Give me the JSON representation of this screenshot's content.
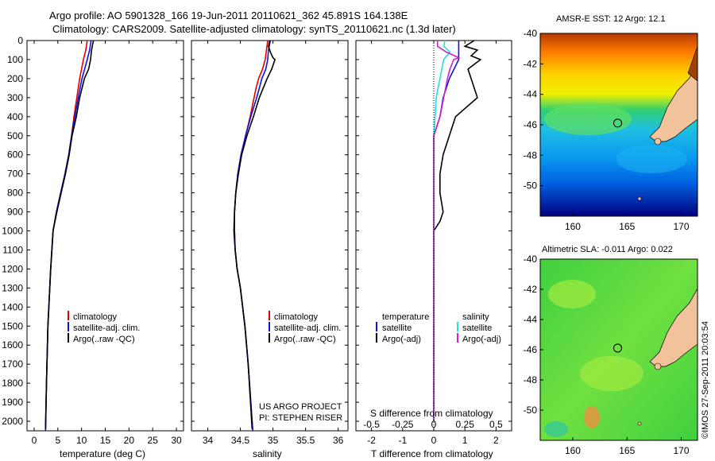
{
  "header": {
    "line1": "Argo profile: AO 5901328_166 19-Jun-2011 20110621_362 45.891S 164.138E",
    "line2": "Climatology: CARS2009. Satellite-adjusted climatology: synTS_20110621.nc (1.3d later)"
  },
  "colors": {
    "climatology": "#e00000",
    "satellite": "#1010e0",
    "argo": "#000000",
    "salinity_satellite": "#20e0e0",
    "salinity_argo": "#d020d0",
    "land": "#f2c29a"
  },
  "depth_ticks": [
    0,
    100,
    200,
    300,
    400,
    500,
    600,
    700,
    800,
    900,
    1000,
    1100,
    1200,
    1300,
    1400,
    1500,
    1600,
    1700,
    1800,
    1900,
    2000
  ],
  "chart_data": [
    {
      "type": "line",
      "xlabel": "temperature (deg C)",
      "xlim": [
        -1.5,
        31.5
      ],
      "ylim": [
        2050,
        0
      ],
      "xticks": [
        0,
        5,
        10,
        15,
        20,
        25,
        30
      ],
      "legend": [
        "climatology",
        "satellite-adj. clim.",
        "Argo(..raw -QC)"
      ],
      "series": [
        {
          "name": "climatology",
          "depth": [
            0,
            50,
            100,
            200,
            300,
            400,
            500,
            600,
            700,
            800,
            900,
            1000,
            1200,
            1500,
            1800,
            2050
          ],
          "values": [
            11.2,
            10.9,
            10.4,
            9.6,
            9.0,
            8.4,
            7.9,
            7.3,
            6.5,
            5.6,
            4.7,
            4.0,
            3.5,
            2.9,
            2.6,
            2.4
          ]
        },
        {
          "name": "satellite-adj. clim.",
          "depth": [
            0,
            50,
            100,
            200,
            300,
            400,
            500,
            600,
            700,
            800,
            900,
            1000,
            1200,
            1500,
            1800,
            2050
          ],
          "values": [
            12.0,
            11.7,
            11.2,
            10.1,
            9.3,
            8.6,
            7.9,
            7.3,
            6.5,
            5.6,
            4.7,
            4.0,
            3.5,
            2.9,
            2.6,
            2.4
          ]
        },
        {
          "name": "Argo(..raw -QC)",
          "depth": [
            0,
            50,
            100,
            150,
            200,
            300,
            400,
            500,
            600,
            700,
            800,
            900,
            1000,
            1200,
            1500,
            1800,
            2040
          ],
          "values": [
            12.5,
            12.1,
            11.9,
            11.5,
            10.6,
            9.6,
            8.9,
            8.0,
            7.4,
            6.6,
            5.7,
            4.8,
            4.0,
            3.5,
            2.9,
            2.6,
            2.4
          ]
        }
      ]
    },
    {
      "type": "line",
      "xlabel": "salinity",
      "xlim": [
        33.75,
        36.15
      ],
      "ylim": [
        2050,
        0
      ],
      "xticks": [
        34,
        34.5,
        35,
        35.5,
        36
      ],
      "legend": [
        "climatology",
        "satellite-adj. clim.",
        "Argo(..raw -QC)"
      ],
      "series": [
        {
          "name": "climatology",
          "depth": [
            0,
            50,
            100,
            150,
            200,
            250,
            300,
            400,
            500,
            600,
            700,
            800,
            900,
            1000,
            1100,
            1200,
            1300,
            1500,
            1700,
            2050
          ],
          "values": [
            34.92,
            34.9,
            34.88,
            34.84,
            34.78,
            34.74,
            34.71,
            34.65,
            34.58,
            34.51,
            34.46,
            34.43,
            34.41,
            34.41,
            34.42,
            34.45,
            34.5,
            34.57,
            34.62,
            34.69
          ]
        },
        {
          "name": "satellite-adj. clim.",
          "depth": [
            0,
            50,
            100,
            150,
            200,
            250,
            300,
            400,
            500,
            600,
            700,
            800,
            900,
            1000,
            1100,
            1200,
            1300,
            1500,
            1700,
            2050
          ],
          "values": [
            34.96,
            34.93,
            34.92,
            34.89,
            34.83,
            34.79,
            34.75,
            34.66,
            34.58,
            34.51,
            34.46,
            34.43,
            34.41,
            34.41,
            34.42,
            34.45,
            34.5,
            34.57,
            34.62,
            34.69
          ]
        },
        {
          "name": "Argo(..raw -QC)",
          "depth": [
            0,
            30,
            60,
            90,
            100,
            150,
            200,
            300,
            400,
            500,
            600,
            700,
            800,
            900,
            1000,
            1100,
            1200,
            1300,
            1500,
            1700,
            2040
          ],
          "values": [
            34.95,
            34.93,
            34.96,
            35.0,
            35.03,
            34.98,
            34.91,
            34.79,
            34.7,
            34.6,
            34.52,
            34.47,
            34.43,
            34.41,
            34.4,
            34.42,
            34.45,
            34.5,
            34.57,
            34.62,
            34.68
          ]
        }
      ]
    },
    {
      "type": "line",
      "xlabel": "T difference from climatology",
      "xlabel_upper": "S difference from climatology",
      "xlim": [
        -2.5,
        2.5
      ],
      "ylim": [
        2050,
        0
      ],
      "xticks_T": [
        -2,
        -1,
        0,
        1,
        2
      ],
      "xticks_S": [
        -0.5,
        -0.25,
        0,
        0.25,
        0.5
      ],
      "xticklabels_S": [
        "-0.5",
        "-0.25",
        "0",
        "0.25",
        "0.5"
      ],
      "legend_groups": [
        {
          "title": "temperature",
          "entries": [
            "satellite",
            "Argo(-adj)"
          ]
        },
        {
          "title": "salinity",
          "entries": [
            "satellite",
            "Argo(-adj)"
          ]
        }
      ],
      "series": [
        {
          "name": "T satellite",
          "depth": [
            0,
            100,
            200,
            300,
            400,
            500,
            600,
            700,
            800,
            1000,
            2000
          ],
          "values": [
            0.8,
            0.8,
            0.5,
            0.3,
            0.2,
            0.0,
            0.0,
            0.0,
            0.0,
            0.0,
            0.0
          ]
        },
        {
          "name": "T Argo(-adj)",
          "depth": [
            0,
            30,
            50,
            80,
            100,
            150,
            200,
            250,
            300,
            400,
            500,
            600,
            700,
            800,
            900,
            950,
            1000,
            1200,
            2000
          ],
          "values": [
            1.3,
            1.0,
            1.4,
            1.2,
            1.5,
            1.1,
            1.2,
            1.3,
            1.4,
            0.7,
            0.5,
            0.3,
            0.2,
            0.2,
            0.3,
            0.2,
            0.0,
            0.0,
            0.0
          ]
        },
        {
          "name": "S satellite",
          "depth": [
            0,
            30,
            60,
            100,
            200,
            300,
            400,
            500,
            600,
            700,
            800,
            900,
            1000,
            2000
          ],
          "values": [
            0.09,
            0.08,
            0.13,
            0.08,
            0.05,
            0.02,
            0.01,
            0.0,
            0.0,
            0.0,
            0.0,
            0.0,
            0.0,
            0.0
          ]
        },
        {
          "name": "S Argo(-adj)",
          "depth": [
            0,
            30,
            60,
            90,
            100,
            150,
            200,
            300,
            400,
            500,
            600,
            700,
            800,
            900,
            1000,
            2000
          ],
          "values": [
            0.03,
            0.03,
            0.1,
            0.2,
            0.16,
            0.13,
            0.11,
            0.08,
            0.05,
            0.0,
            0.0,
            0.0,
            0.0,
            0.0,
            0.0,
            0.0
          ]
        }
      ]
    },
    {
      "type": "heatmap",
      "title": "AMSR-E SST: 12 Argo: 12.1",
      "xlim": [
        157,
        171.5
      ],
      "ylim": [
        -52,
        -40
      ],
      "xticks": [
        160,
        165,
        170
      ],
      "yticks": [
        -40,
        -42,
        -44,
        -46,
        -48,
        -50
      ],
      "profile_location": {
        "lon": 164.138,
        "lat": -45.891
      }
    },
    {
      "type": "heatmap",
      "title": "Altimetric SLA: -0.011 Argo: 0.022",
      "xlim": [
        157,
        171.5
      ],
      "ylim": [
        -52,
        -40
      ],
      "xticks": [
        160,
        165,
        170
      ],
      "yticks": [
        -40,
        -42,
        -44,
        -46,
        -48,
        -50
      ],
      "profile_location": {
        "lon": 164.138,
        "lat": -45.891
      }
    }
  ],
  "annotations": {
    "project": "US ARGO PROJECT",
    "pi": "PI: STEPHEN RISER",
    "credit": "©IMOS 27-Sep-2011 20:03:54"
  }
}
